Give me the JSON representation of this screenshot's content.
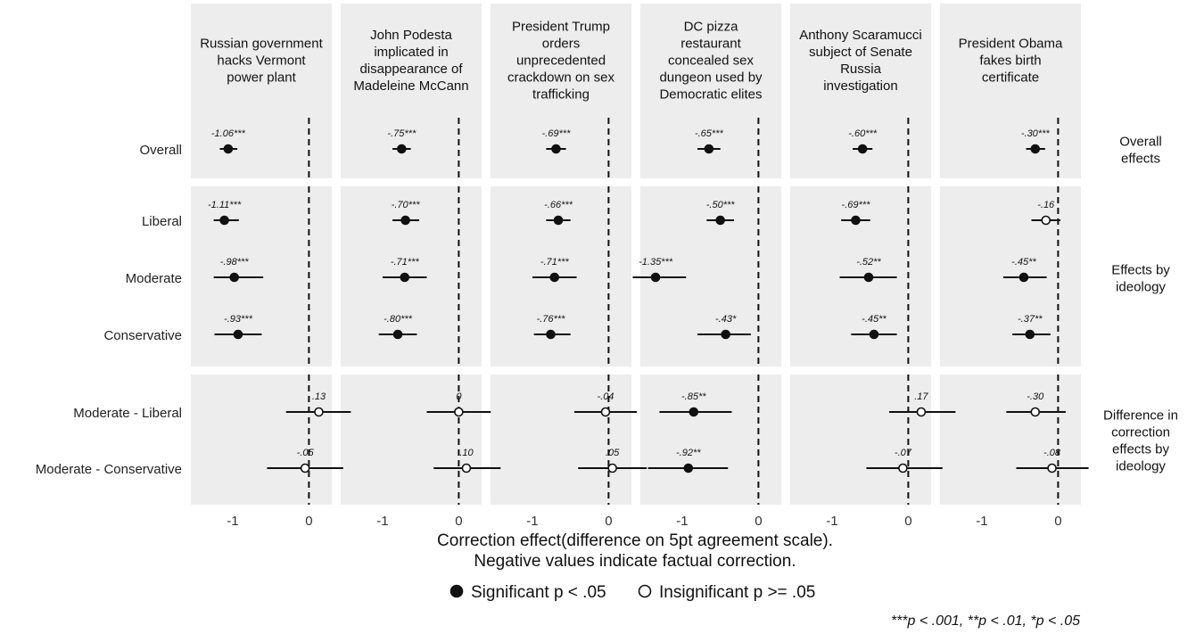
{
  "chart_data": {
    "type": "scatter",
    "subtype": "coefficient-plot-with-confidence-intervals",
    "facets": [
      "Russian government hacks Vermont power plant",
      "John Podesta implicated in disappearance of Madeleine McCann",
      "President Trump orders unprecedented crackdown on sex trafficking",
      "DC pizza restaurant concealed sex dungeon used by Democratic elites",
      "Anthony Scaramucci subject of Senate Russia investigation",
      "President Obama fakes birth certificate"
    ],
    "groups": [
      {
        "label": "Overall effects",
        "rows": [
          "Overall"
        ]
      },
      {
        "label": "Effects by ideology",
        "rows": [
          "Liberal",
          "Moderate",
          "Conservative"
        ]
      },
      {
        "label": "Difference in correction effects by ideology",
        "rows": [
          "Moderate - Liberal",
          "Moderate - Conservative"
        ]
      }
    ],
    "xlabel": "Correction effect(difference on 5pt agreement scale). Negative values indicate factual correction.",
    "xlim": [
      -1.55,
      0.3
    ],
    "xticks": [
      -1,
      0
    ],
    "reference_line_x": 0,
    "legend": [
      {
        "label": "Significant p < .05",
        "marker": "filled"
      },
      {
        "label": "Insignificant p >= .05",
        "marker": "open"
      }
    ],
    "footnote": "***p < .001, **p < .01, *p < .05",
    "points": [
      {
        "facet": 0,
        "row": "Overall",
        "est": -1.06,
        "lo": -1.17,
        "hi": -0.94,
        "label": "-1.06***",
        "sig": true
      },
      {
        "facet": 0,
        "row": "Liberal",
        "est": -1.11,
        "lo": -1.25,
        "hi": -0.92,
        "label": "-1.11***",
        "sig": true
      },
      {
        "facet": 0,
        "row": "Moderate",
        "est": -0.98,
        "lo": -1.25,
        "hi": -0.6,
        "label": "-.98***",
        "sig": true
      },
      {
        "facet": 0,
        "row": "Conservative",
        "est": -0.93,
        "lo": -1.24,
        "hi": -0.62,
        "label": "-.93***",
        "sig": true
      },
      {
        "facet": 0,
        "row": "Moderate - Liberal",
        "est": 0.13,
        "lo": -0.3,
        "hi": 0.55,
        "label": ".13",
        "sig": false
      },
      {
        "facet": 0,
        "row": "Moderate - Conservative",
        "est": -0.05,
        "lo": -0.55,
        "hi": 0.45,
        "label": "-.05",
        "sig": false
      },
      {
        "facet": 1,
        "row": "Overall",
        "est": -0.75,
        "lo": -0.87,
        "hi": -0.63,
        "label": "-.75***",
        "sig": true
      },
      {
        "facet": 1,
        "row": "Liberal",
        "est": -0.7,
        "lo": -0.87,
        "hi": -0.52,
        "label": "-.70***",
        "sig": true
      },
      {
        "facet": 1,
        "row": "Moderate",
        "est": -0.71,
        "lo": -1.0,
        "hi": -0.42,
        "label": "-.71***",
        "sig": true
      },
      {
        "facet": 1,
        "row": "Conservative",
        "est": -0.8,
        "lo": -1.05,
        "hi": -0.55,
        "label": "-.80***",
        "sig": true
      },
      {
        "facet": 1,
        "row": "Moderate - Liberal",
        "est": 0.0,
        "lo": -0.42,
        "hi": 0.42,
        "label": "0",
        "sig": false
      },
      {
        "facet": 1,
        "row": "Moderate - Conservative",
        "est": 0.1,
        "lo": -0.33,
        "hi": 0.55,
        "label": ".10",
        "sig": false
      },
      {
        "facet": 2,
        "row": "Overall",
        "est": -0.69,
        "lo": -0.82,
        "hi": -0.56,
        "label": "-.69***",
        "sig": true
      },
      {
        "facet": 2,
        "row": "Liberal",
        "est": -0.66,
        "lo": -0.82,
        "hi": -0.5,
        "label": "-.66***",
        "sig": true
      },
      {
        "facet": 2,
        "row": "Moderate",
        "est": -0.71,
        "lo": -1.0,
        "hi": -0.42,
        "label": "-.71***",
        "sig": true
      },
      {
        "facet": 2,
        "row": "Conservative",
        "est": -0.76,
        "lo": -0.98,
        "hi": -0.5,
        "label": "-.76***",
        "sig": true
      },
      {
        "facet": 2,
        "row": "Moderate - Liberal",
        "est": -0.04,
        "lo": -0.45,
        "hi": 0.37,
        "label": "-.04",
        "sig": false
      },
      {
        "facet": 2,
        "row": "Moderate - Conservative",
        "est": 0.05,
        "lo": -0.4,
        "hi": 0.5,
        "label": ".05",
        "sig": false
      },
      {
        "facet": 3,
        "row": "Overall",
        "est": -0.65,
        "lo": -0.8,
        "hi": -0.5,
        "label": "-.65***",
        "sig": true
      },
      {
        "facet": 3,
        "row": "Liberal",
        "est": -0.5,
        "lo": -0.68,
        "hi": -0.32,
        "label": "-.50***",
        "sig": true
      },
      {
        "facet": 3,
        "row": "Moderate",
        "est": -1.35,
        "lo": -1.65,
        "hi": -0.95,
        "label": "-1.35***",
        "sig": true
      },
      {
        "facet": 3,
        "row": "Conservative",
        "est": -0.43,
        "lo": -0.8,
        "hi": -0.1,
        "label": "-.43*",
        "sig": true
      },
      {
        "facet": 3,
        "row": "Moderate - Liberal",
        "est": -0.85,
        "lo": -1.3,
        "hi": -0.35,
        "label": "-.85**",
        "sig": true
      },
      {
        "facet": 3,
        "row": "Moderate - Conservative",
        "est": -0.92,
        "lo": -1.45,
        "hi": -0.4,
        "label": "-.92**",
        "sig": true
      },
      {
        "facet": 4,
        "row": "Overall",
        "est": -0.6,
        "lo": -0.73,
        "hi": -0.47,
        "label": "-.60***",
        "sig": true
      },
      {
        "facet": 4,
        "row": "Liberal",
        "est": -0.69,
        "lo": -0.88,
        "hi": -0.5,
        "label": "-.69***",
        "sig": true
      },
      {
        "facet": 4,
        "row": "Moderate",
        "est": -0.52,
        "lo": -0.9,
        "hi": -0.15,
        "label": "-.52**",
        "sig": true
      },
      {
        "facet": 4,
        "row": "Conservative",
        "est": -0.45,
        "lo": -0.75,
        "hi": -0.15,
        "label": "-.45**",
        "sig": true
      },
      {
        "facet": 4,
        "row": "Moderate - Liberal",
        "est": 0.17,
        "lo": -0.25,
        "hi": 0.62,
        "label": ".17",
        "sig": false
      },
      {
        "facet": 4,
        "row": "Moderate - Conservative",
        "est": -0.07,
        "lo": -0.55,
        "hi": 0.45,
        "label": "-.07",
        "sig": false
      },
      {
        "facet": 5,
        "row": "Overall",
        "est": -0.3,
        "lo": -0.42,
        "hi": -0.17,
        "label": "-.30***",
        "sig": true
      },
      {
        "facet": 5,
        "row": "Liberal",
        "est": -0.16,
        "lo": -0.35,
        "hi": 0.03,
        "label": "-.16",
        "sig": false
      },
      {
        "facet": 5,
        "row": "Moderate",
        "est": -0.45,
        "lo": -0.72,
        "hi": -0.15,
        "label": "-.45**",
        "sig": true
      },
      {
        "facet": 5,
        "row": "Conservative",
        "est": -0.37,
        "lo": -0.6,
        "hi": -0.1,
        "label": "-.37**",
        "sig": true
      },
      {
        "facet": 5,
        "row": "Moderate - Liberal",
        "est": -0.3,
        "lo": -0.68,
        "hi": 0.1,
        "label": "-.30",
        "sig": false
      },
      {
        "facet": 5,
        "row": "Moderate - Conservative",
        "est": -0.08,
        "lo": -0.55,
        "hi": 0.4,
        "label": "-.08",
        "sig": false
      }
    ]
  }
}
